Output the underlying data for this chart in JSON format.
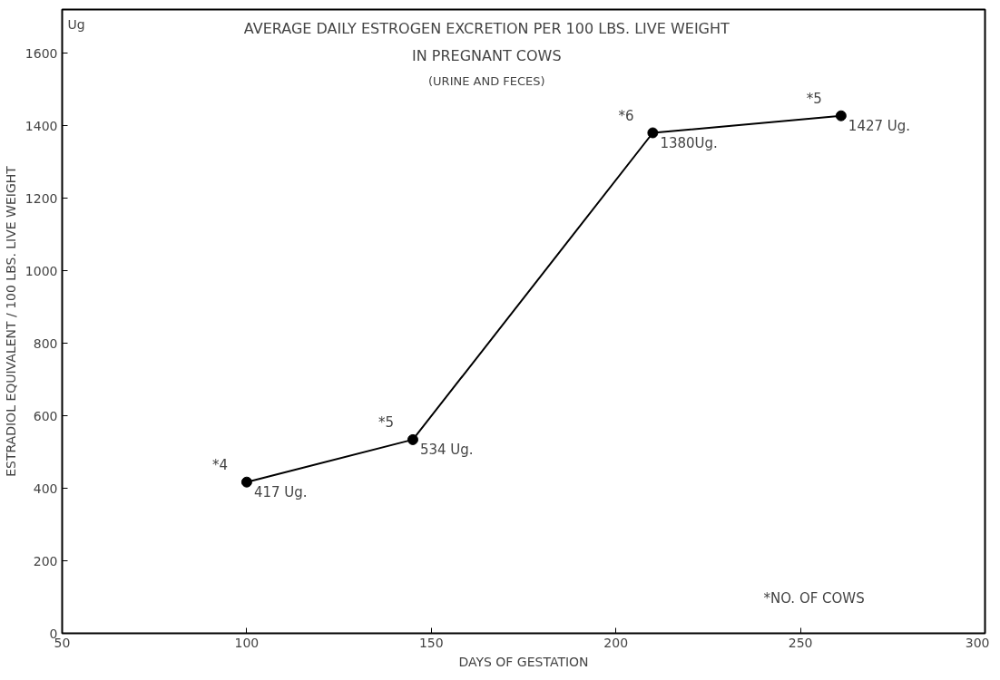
{
  "chart_data": {
    "type": "line",
    "title": "AVERAGE DAILY ESTROGEN EXCRETION PER 100 LBS. LIVE WEIGHT\nIN PREGNANT COWS",
    "subtitle": "(URINE AND FECES)",
    "xlabel": "DAYS OF GESTATION",
    "ylabel": "ESTRADIOL EQUIVALENT / 100 LBS. LIVE WEIGHT",
    "x": [
      100,
      145,
      210,
      261
    ],
    "series": [
      {
        "color": "#000000",
        "values": [
          417,
          534,
          1380,
          1427
        ],
        "value_labels": [
          "417 Ug.",
          "534 Ug.",
          "1380Ug.",
          "1427 Ug."
        ]
      }
    ],
    "xlim": [
      50,
      300
    ],
    "xticks": [
      50,
      100,
      150,
      200,
      250,
      300
    ],
    "ylim": [
      0,
      1720
    ],
    "yticks": [
      0,
      200,
      400,
      600,
      800,
      1000,
      1200,
      1400,
      1600
    ],
    "marker": "circle",
    "line_style": "solid",
    "grid": false,
    "annotations": [
      "Ug",
      {
        "text": "*4",
        "x": 100,
        "y": 417
      },
      {
        "text": "*5",
        "x": 145,
        "y": 534
      },
      {
        "text": "*6",
        "x": 210,
        "y": 1380
      },
      {
        "text": "*5",
        "x": 261,
        "y": 1427
      },
      "*NO. OF COWS"
    ]
  }
}
